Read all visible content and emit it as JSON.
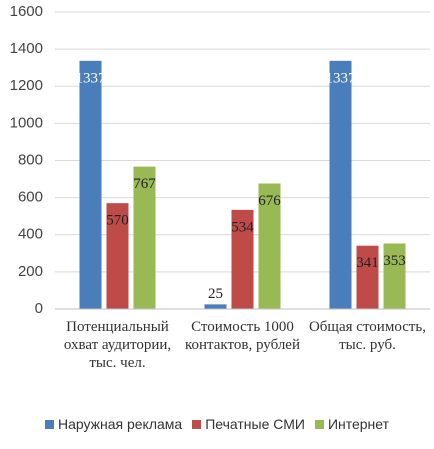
{
  "chart_data": {
    "type": "bar",
    "categories": [
      "Потенциальный охват аудитории, тыс. чел.",
      "Стоимость 1000 контактов, рублей",
      "Общая стоимость, тыс. руб."
    ],
    "series": [
      {
        "name": "Наружная реклама",
        "color": "#4a7ebb",
        "values": [
          1337,
          25,
          1337
        ]
      },
      {
        "name": "Печатные СМИ",
        "color": "#be4b48",
        "values": [
          570,
          534,
          341
        ]
      },
      {
        "name": "Интернет",
        "color": "#98b954",
        "values": [
          767,
          676,
          353
        ]
      }
    ],
    "ylim": [
      0,
      1600
    ],
    "yticks": [
      0,
      200,
      400,
      600,
      800,
      1000,
      1200,
      1400,
      1600
    ],
    "grid": true,
    "legend": "bottom"
  }
}
